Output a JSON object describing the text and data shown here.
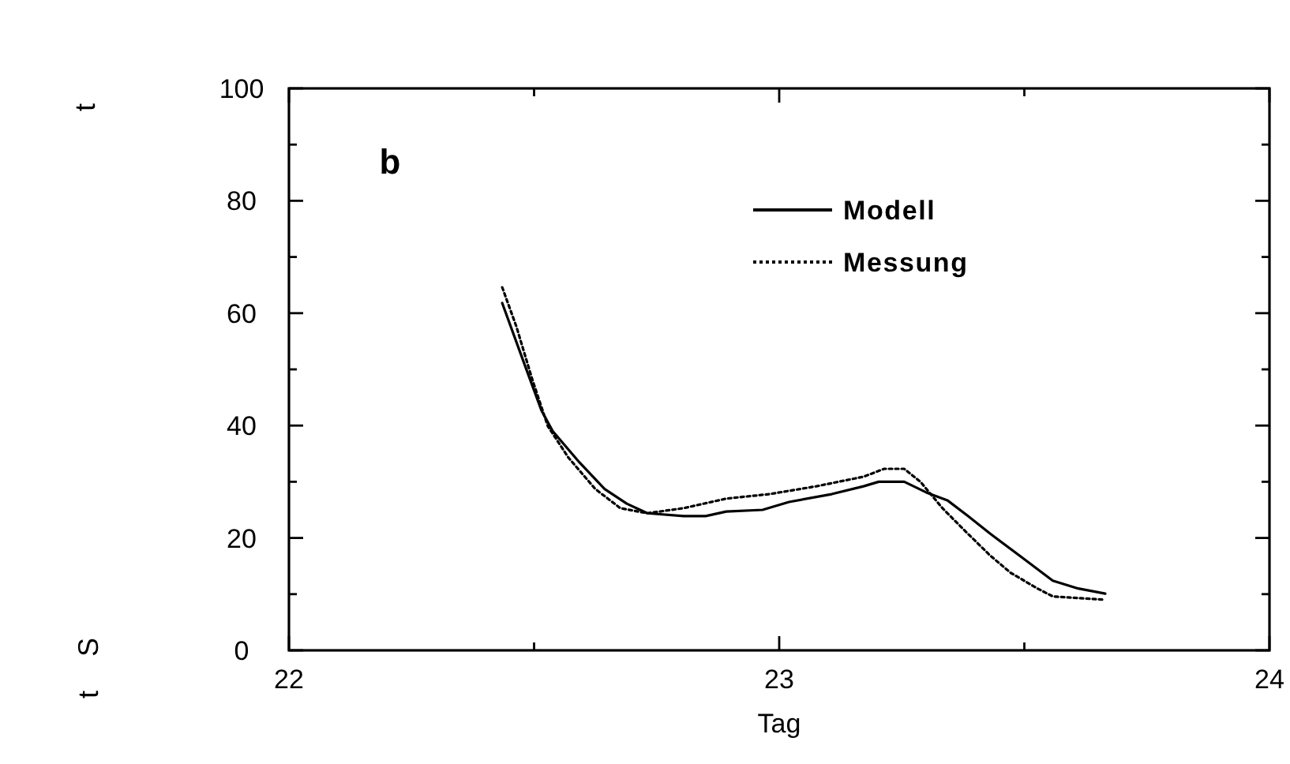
{
  "chart_data": {
    "type": "line",
    "xlabel": "Tag",
    "annotations": [
      "b",
      "t",
      "S",
      "t"
    ],
    "xlim": [
      22,
      24
    ],
    "xticks": [
      22,
      {
        "value": 22.5,
        "label": null
      },
      23,
      {
        "value": 23.5,
        "label": null
      },
      24
    ],
    "ylim": [
      0,
      100
    ],
    "yticks": [
      0,
      {
        "value": 10,
        "label": null
      },
      20,
      {
        "value": 30,
        "label": null
      },
      40,
      {
        "value": 50,
        "label": null
      },
      60,
      {
        "value": 70,
        "label": null
      },
      80,
      {
        "value": 90,
        "label": null
      },
      100
    ],
    "grid": false,
    "legend": "top right",
    "marker": "none",
    "series": [
      {
        "name": "Modell",
        "color": "#000000",
        "line_style": "solid",
        "x": [
          22.435,
          22.483,
          22.515,
          22.538,
          22.593,
          22.644,
          22.689,
          22.731,
          22.805,
          22.85,
          22.892,
          22.966,
          23.02,
          23.107,
          23.172,
          23.203,
          23.255,
          23.3,
          23.343,
          23.385,
          23.43,
          23.494,
          23.558,
          23.61,
          23.665
        ],
        "values": [
          61.8,
          50.3,
          42.7,
          39,
          33.4,
          28.7,
          26.1,
          24.4,
          23.9,
          23.9,
          24.7,
          25,
          26.4,
          27.8,
          29.2,
          30,
          30,
          28.1,
          26.7,
          23.9,
          20.8,
          16.6,
          12.4,
          11,
          10.1
        ]
      },
      {
        "name": "Messung",
        "color": "#000000",
        "line_style": "dotted",
        "x": [
          22.435,
          22.464,
          22.496,
          22.528,
          22.57,
          22.625,
          22.676,
          22.731,
          22.805,
          22.892,
          22.98,
          23.076,
          23.172,
          23.214,
          23.255,
          23.288,
          23.333,
          23.375,
          23.43,
          23.472,
          23.527,
          23.558,
          23.665
        ],
        "values": [
          64.6,
          57.6,
          48.3,
          39.9,
          34.3,
          28.7,
          25.3,
          24.4,
          25.3,
          27,
          27.8,
          29.2,
          30.9,
          32.3,
          32.3,
          30,
          25.3,
          21.6,
          16.9,
          13.8,
          11,
          9.6,
          9
        ]
      }
    ]
  }
}
